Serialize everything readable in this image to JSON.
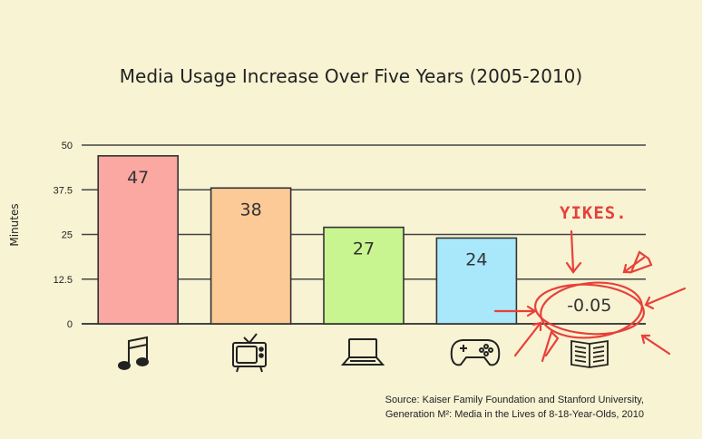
{
  "chart_data": {
    "type": "bar",
    "title": "Media Usage Increase Over Five Years (2005-2010)",
    "ylabel": "Minutes",
    "xlabel": "",
    "ylim": [
      0,
      50
    ],
    "yticks": [
      "0",
      "12.5",
      "25",
      "37.5",
      "50"
    ],
    "categories": [
      "music-note-icon",
      "tv-icon",
      "laptop-icon",
      "game-controller-icon",
      "book-icon"
    ],
    "values": [
      47,
      38,
      27,
      24,
      -0.05
    ],
    "value_labels": [
      "47",
      "38",
      "27",
      "24",
      "-0.05"
    ],
    "colors": [
      "#fba7a2",
      "#fbca97",
      "#c8f58f",
      "#a9e7fb",
      "#f7f3d3"
    ],
    "annotation": "YIKES."
  },
  "source": {
    "line1": "Source: Kaiser Family Foundation and Stanford University,",
    "line2": "Generation M²: Media in the Lives of 8-18-Year-Olds, 2010"
  }
}
